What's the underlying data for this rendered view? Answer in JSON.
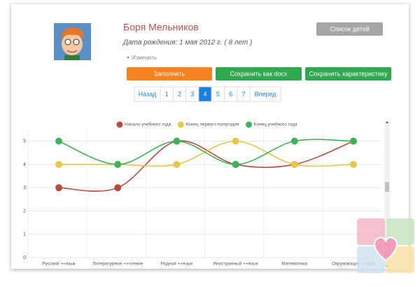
{
  "profile": {
    "name": "Боря Мельников",
    "birth": "Дата рождения: 1 мая 2012 г. ( 8 лет )",
    "edit": "Изменить"
  },
  "buttons": {
    "children_list": "Список детей",
    "fill": "Заполнить",
    "save_docx": "Сохранить как docx",
    "save_description": "Сохранить характеристику"
  },
  "pagination": {
    "prev": "Назад",
    "pages": [
      1,
      2,
      3,
      4,
      5,
      6,
      7
    ],
    "active": 4,
    "next": "Вперед"
  },
  "chart_data": {
    "type": "line",
    "smooth": true,
    "categories": [
      "Русский ++язык",
      "Литературное ++чтение",
      "Родной ++язык",
      "Иностранный ++язык",
      "Математика",
      "Окружающий ++мир"
    ],
    "series": [
      {
        "name": "Начало учебного года",
        "color": "#b84a3e",
        "values": [
          3,
          3,
          5,
          4,
          4,
          5
        ]
      },
      {
        "name": "Конец первого полугодия",
        "color": "#e8c64c",
        "values": [
          4,
          4,
          4,
          5,
          4,
          4
        ]
      },
      {
        "name": "Конец учебного года",
        "color": "#3db45a",
        "values": [
          5,
          4,
          5,
          4,
          5,
          5
        ]
      }
    ],
    "ylim": [
      0,
      5.5
    ],
    "yticks": [
      0,
      1,
      2,
      3,
      4,
      5
    ],
    "grid": true,
    "legend": "top"
  }
}
